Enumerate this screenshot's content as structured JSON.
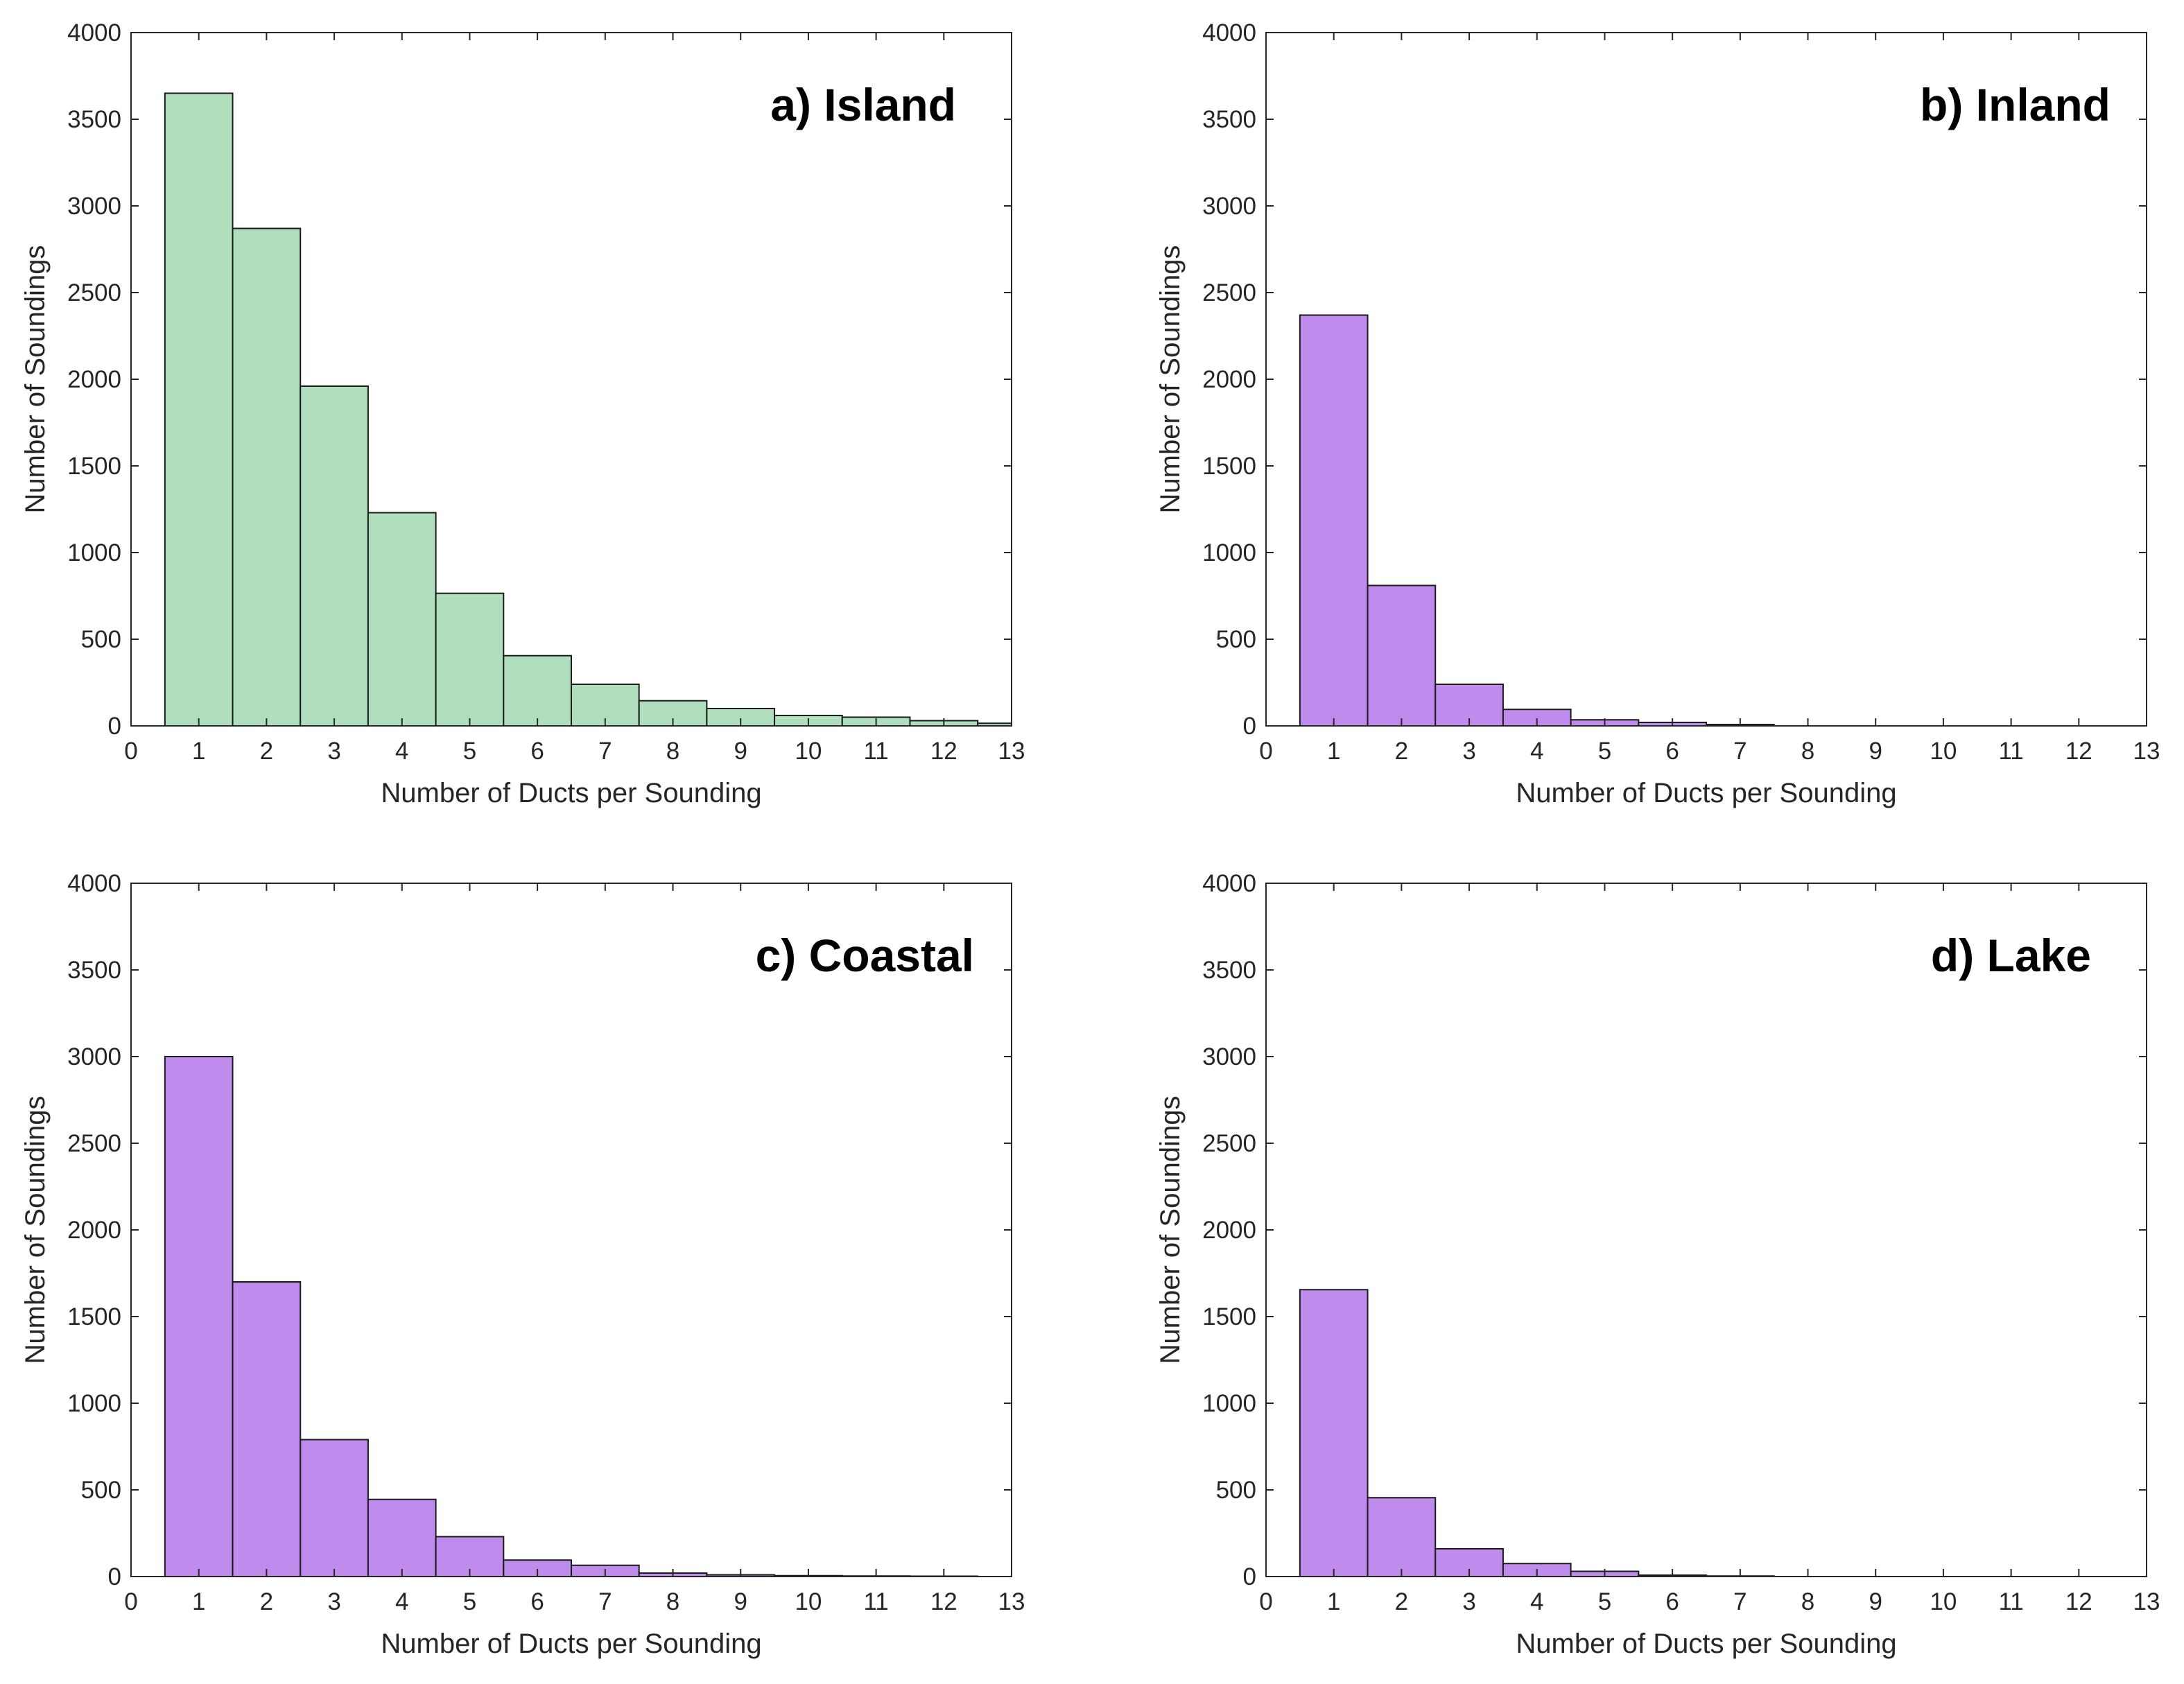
{
  "chart_data": [
    {
      "type": "bar",
      "title": "a) Island",
      "xlabel": "Number of Ducts per Sounding",
      "ylabel": "Number of Soundings",
      "xlim": [
        0,
        13
      ],
      "ylim": [
        0,
        4000
      ],
      "xticks": [
        "0",
        "1",
        "2",
        "3",
        "4",
        "5",
        "6",
        "7",
        "8",
        "9",
        "10",
        "11",
        "12",
        "13"
      ],
      "yticks": [
        "0",
        "500",
        "1000",
        "1500",
        "2000",
        "2500",
        "3000",
        "3500",
        "4000"
      ],
      "categories": [
        1,
        2,
        3,
        4,
        5,
        6,
        7,
        8,
        9,
        10,
        11,
        12,
        13
      ],
      "values": [
        3650,
        2870,
        1960,
        1230,
        765,
        405,
        240,
        145,
        100,
        60,
        50,
        30,
        15
      ],
      "bar_color": "#b0dfbe",
      "title_position": "top-right",
      "grid": false
    },
    {
      "type": "bar",
      "title": "b) Inland",
      "xlabel": "Number of Ducts per Sounding",
      "ylabel": "Number of Soundings",
      "xlim": [
        0,
        13
      ],
      "ylim": [
        0,
        4000
      ],
      "xticks": [
        "0",
        "1",
        "2",
        "3",
        "4",
        "5",
        "6",
        "7",
        "8",
        "9",
        "10",
        "11",
        "12",
        "13"
      ],
      "yticks": [
        "0",
        "500",
        "1000",
        "1500",
        "2000",
        "2500",
        "3000",
        "3500",
        "4000"
      ],
      "categories": [
        1,
        2,
        3,
        4,
        5,
        6,
        7,
        8,
        9,
        10,
        11,
        12,
        13
      ],
      "values": [
        2370,
        810,
        240,
        95,
        35,
        20,
        8,
        0,
        0,
        0,
        0,
        0,
        0
      ],
      "bar_color": "#bf8bec",
      "title_position": "top-right",
      "grid": false
    },
    {
      "type": "bar",
      "title": "c) Coastal",
      "xlabel": "Number of Ducts per Sounding",
      "ylabel": "Number of Soundings",
      "xlim": [
        0,
        13
      ],
      "ylim": [
        0,
        4000
      ],
      "xticks": [
        "0",
        "1",
        "2",
        "3",
        "4",
        "5",
        "6",
        "7",
        "8",
        "9",
        "10",
        "11",
        "12",
        "13"
      ],
      "yticks": [
        "0",
        "500",
        "1000",
        "1500",
        "2000",
        "2500",
        "3000",
        "3500",
        "4000"
      ],
      "categories": [
        1,
        2,
        3,
        4,
        5,
        6,
        7,
        8,
        9,
        10,
        11,
        12,
        13
      ],
      "values": [
        3000,
        1700,
        790,
        445,
        230,
        95,
        65,
        20,
        10,
        5,
        3,
        2,
        0
      ],
      "bar_color": "#bf8bec",
      "title_position": "top-right",
      "grid": false
    },
    {
      "type": "bar",
      "title": "d) Lake",
      "xlabel": "Number of Ducts per Sounding",
      "ylabel": "Number of Soundings",
      "xlim": [
        0,
        13
      ],
      "ylim": [
        0,
        4000
      ],
      "xticks": [
        "0",
        "1",
        "2",
        "3",
        "4",
        "5",
        "6",
        "7",
        "8",
        "9",
        "10",
        "11",
        "12",
        "13"
      ],
      "yticks": [
        "0",
        "500",
        "1000",
        "1500",
        "2000",
        "2500",
        "3000",
        "3500",
        "4000"
      ],
      "categories": [
        1,
        2,
        3,
        4,
        5,
        6,
        7,
        8,
        9,
        10,
        11,
        12,
        13
      ],
      "values": [
        1655,
        455,
        160,
        75,
        30,
        8,
        3,
        0,
        0,
        0,
        0,
        0,
        0
      ],
      "bar_color": "#bf8bec",
      "title_position": "top-right",
      "grid": false
    }
  ]
}
